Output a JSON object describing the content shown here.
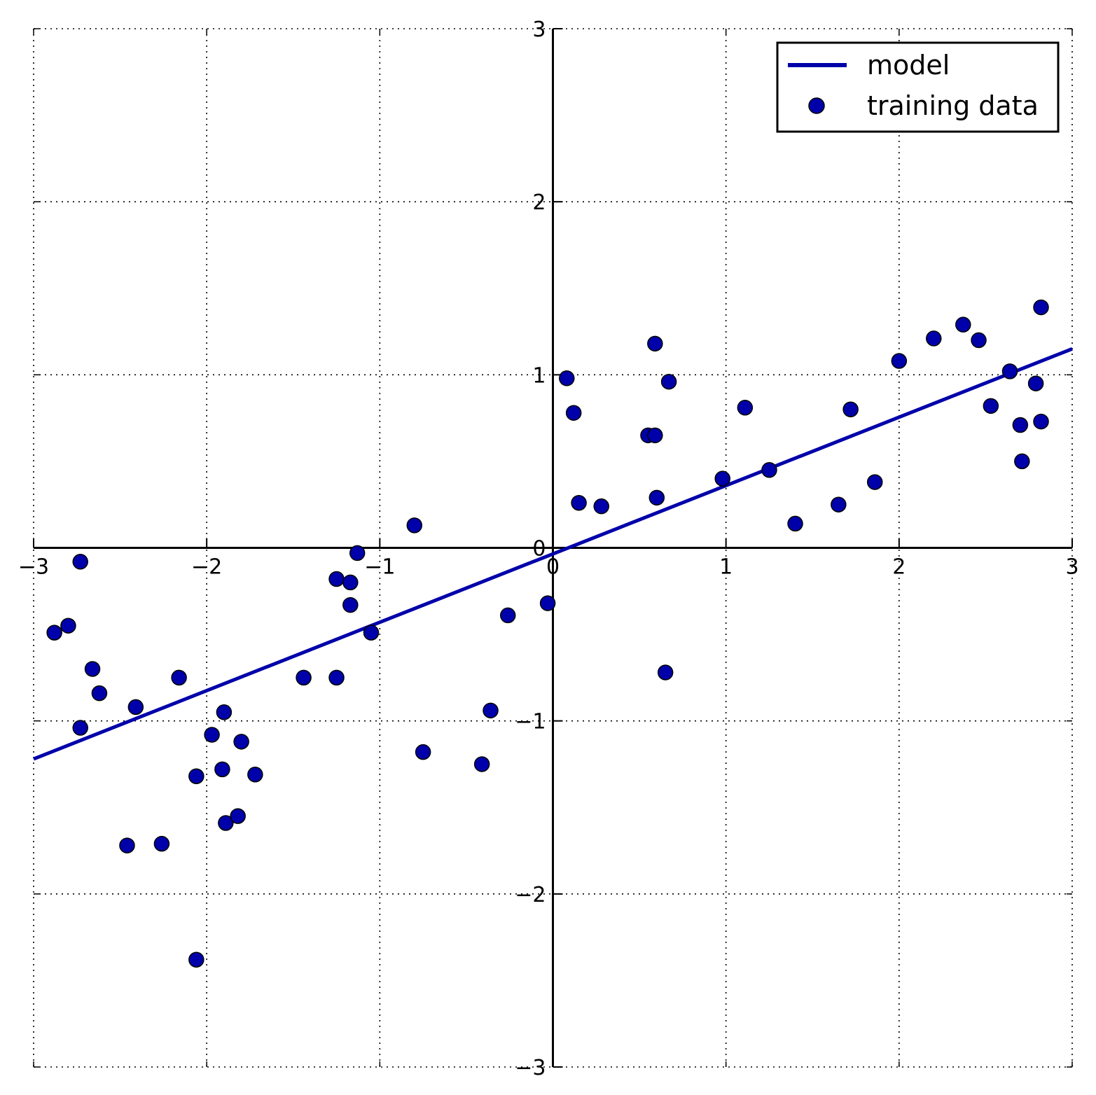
{
  "chart_data": {
    "type": "scatter",
    "title": "",
    "xlabel": "",
    "ylabel": "",
    "xlim": [
      -3,
      3
    ],
    "ylim": [
      -3,
      3
    ],
    "grid": true,
    "grid_style": "dotted",
    "axes_through_origin": true,
    "legend_position": "top-right",
    "x_ticks": [
      {
        "value": -3,
        "label": "−3"
      },
      {
        "value": -2,
        "label": "−2"
      },
      {
        "value": -1,
        "label": "−1"
      },
      {
        "value": 0,
        "label": "0"
      },
      {
        "value": 1,
        "label": "1"
      },
      {
        "value": 2,
        "label": "2"
      },
      {
        "value": 3,
        "label": "3"
      }
    ],
    "y_ticks": [
      {
        "value": -3,
        "label": "−3"
      },
      {
        "value": -2,
        "label": "−2"
      },
      {
        "value": -1,
        "label": "−1"
      },
      {
        "value": 0,
        "label": "0"
      },
      {
        "value": 1,
        "label": "1"
      },
      {
        "value": 2,
        "label": "2"
      },
      {
        "value": 3,
        "label": "3"
      }
    ],
    "series": [
      {
        "name": "model",
        "type": "line",
        "color": "#0000aa",
        "x": [
          -3,
          3
        ],
        "y": [
          -1.22,
          1.15
        ]
      },
      {
        "name": "training data",
        "type": "scatter",
        "color": "#0000aa",
        "points": [
          [
            -2.88,
            -0.49
          ],
          [
            -2.8,
            -0.45
          ],
          [
            -2.73,
            -0.08
          ],
          [
            -2.73,
            -1.04
          ],
          [
            -2.66,
            -0.7
          ],
          [
            -2.62,
            -0.84
          ],
          [
            -2.46,
            -1.72
          ],
          [
            -2.41,
            -0.92
          ],
          [
            -2.26,
            -1.71
          ],
          [
            -2.16,
            -0.75
          ],
          [
            -2.06,
            -1.32
          ],
          [
            -2.06,
            -2.38
          ],
          [
            -1.97,
            -1.08
          ],
          [
            -1.91,
            -1.28
          ],
          [
            -1.9,
            -0.95
          ],
          [
            -1.89,
            -1.59
          ],
          [
            -1.82,
            -1.55
          ],
          [
            -1.8,
            -1.12
          ],
          [
            -1.72,
            -1.31
          ],
          [
            -1.44,
            -0.75
          ],
          [
            -1.25,
            -0.75
          ],
          [
            -1.25,
            -0.18
          ],
          [
            -1.17,
            -0.2
          ],
          [
            -1.17,
            -0.33
          ],
          [
            -1.13,
            -0.03
          ],
          [
            -1.05,
            -0.49
          ],
          [
            -0.8,
            0.13
          ],
          [
            -0.75,
            -1.18
          ],
          [
            -0.41,
            -1.25
          ],
          [
            -0.36,
            -0.94
          ],
          [
            -0.26,
            -0.39
          ],
          [
            -0.03,
            -0.32
          ],
          [
            0.08,
            0.98
          ],
          [
            0.12,
            0.78
          ],
          [
            0.15,
            0.26
          ],
          [
            0.28,
            0.24
          ],
          [
            0.55,
            0.65
          ],
          [
            0.59,
            1.18
          ],
          [
            0.59,
            0.65
          ],
          [
            0.6,
            0.29
          ],
          [
            0.65,
            -0.72
          ],
          [
            0.67,
            0.96
          ],
          [
            0.98,
            0.4
          ],
          [
            1.11,
            0.81
          ],
          [
            1.25,
            0.45
          ],
          [
            1.4,
            0.14
          ],
          [
            1.65,
            0.25
          ],
          [
            1.72,
            0.8
          ],
          [
            1.86,
            0.38
          ],
          [
            2.0,
            1.08
          ],
          [
            2.2,
            1.21
          ],
          [
            2.37,
            1.29
          ],
          [
            2.46,
            1.2
          ],
          [
            2.53,
            0.82
          ],
          [
            2.64,
            1.02
          ],
          [
            2.7,
            0.71
          ],
          [
            2.71,
            0.5
          ],
          [
            2.79,
            0.95
          ],
          [
            2.82,
            1.39
          ],
          [
            2.82,
            0.73
          ]
        ]
      }
    ]
  }
}
